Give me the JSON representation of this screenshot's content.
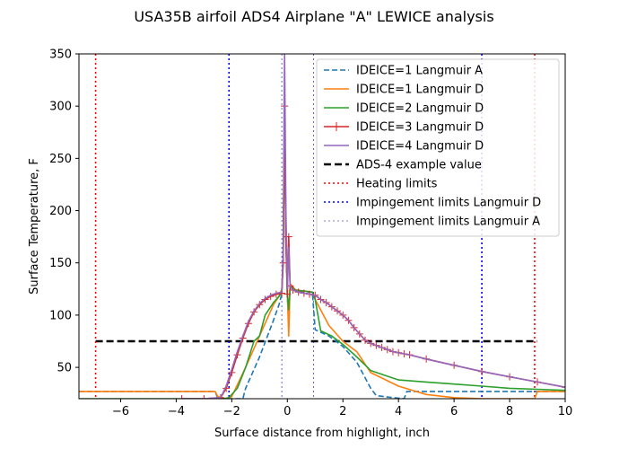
{
  "chart_data": {
    "type": "line",
    "title": "USA35B airfoil ADS4 Airplane \"A\" LEWICE analysis",
    "xlabel": "Surface distance from highlight, inch",
    "ylabel": "Surface Temperature, F",
    "xlim": [
      -7.5,
      10
    ],
    "ylim": [
      20,
      350
    ],
    "xticks": [
      -6,
      -4,
      -2,
      0,
      2,
      4,
      6,
      8,
      10
    ],
    "yticks": [
      50,
      100,
      150,
      200,
      250,
      300,
      350
    ],
    "grid": false,
    "legend_position": "top-right",
    "series": [
      {
        "name": "IDEICE=1 Langmuir A",
        "color": "#1f77b4",
        "dash": "dashed",
        "x": [
          -7.5,
          -2.6,
          -2.5,
          -1.6,
          -1.5,
          -1.0,
          -0.5,
          -0.3,
          -0.25,
          -0.2,
          -0.15,
          -0.1,
          -0.05,
          0,
          0.05,
          0.1,
          0.3,
          0.6,
          0.9,
          1.0,
          1.5,
          2.0,
          2.5,
          2.8,
          3.0,
          3.2,
          3.5,
          3.8,
          4.2,
          4.3,
          6.0,
          7.0,
          8.0,
          10.0
        ],
        "y": [
          27,
          27,
          20,
          20,
          30,
          60,
          95,
          110,
          115,
          120,
          160,
          300,
          180,
          115,
          105,
          125,
          123,
          122,
          122,
          86,
          80,
          70,
          55,
          40,
          30,
          23,
          22,
          21,
          20,
          27,
          27,
          27,
          27,
          27
        ]
      },
      {
        "name": "IDEICE=1 Langmuir D",
        "color": "#ff7f0e",
        "dash": "solid",
        "x": [
          -7.5,
          -2.6,
          -2.5,
          -2.2,
          -2.0,
          -1.5,
          -1.0,
          -0.5,
          -0.3,
          -0.2,
          -0.15,
          -0.1,
          -0.05,
          0.0,
          0.05,
          0.1,
          0.3,
          0.6,
          0.9,
          1.0,
          1.5,
          2.0,
          2.5,
          3.0,
          4.0,
          5.0,
          6.0,
          7.0,
          8.9,
          9.0,
          10.0
        ],
        "y": [
          27,
          27,
          22,
          20,
          22,
          50,
          80,
          110,
          118,
          125,
          150,
          280,
          170,
          120,
          80,
          130,
          124,
          123,
          122,
          115,
          90,
          75,
          65,
          45,
          32,
          24,
          21,
          20,
          20,
          27,
          27
        ]
      },
      {
        "name": "IDEICE=2 Langmuir D",
        "color": "#2ca02c",
        "dash": "solid",
        "x": [
          -7.5,
          -2.3,
          -2.1,
          -1.8,
          -1.5,
          -1.2,
          -1.0,
          -0.8,
          -0.5,
          -0.3,
          -0.2,
          -0.15,
          -0.1,
          -0.05,
          0,
          0.05,
          0.1,
          0.3,
          0.6,
          0.9,
          1.0,
          1.2,
          1.6,
          2.0,
          2.5,
          3.0,
          4.0,
          5.0,
          6.0,
          7.0,
          8.0,
          9.0,
          10.0
        ],
        "y": [
          20,
          20,
          21,
          30,
          50,
          75,
          80,
          100,
          112,
          118,
          122,
          150,
          280,
          170,
          120,
          105,
          128,
          124,
          123,
          122,
          115,
          85,
          80,
          72,
          60,
          47,
          38,
          36,
          34,
          32,
          30,
          29,
          28
        ]
      },
      {
        "name": "IDEICE=3 Langmuir D",
        "color": "#d62728",
        "dash": "solid",
        "marker": "plus",
        "x": [
          -3.8,
          -3.0,
          -2.4,
          -2.2,
          -2.0,
          -1.8,
          -1.6,
          -1.4,
          -1.2,
          -1.0,
          -0.8,
          -0.6,
          -0.4,
          -0.2,
          -0.15,
          -0.1,
          -0.05,
          0,
          0.05,
          0.1,
          0.2,
          0.4,
          0.6,
          0.8,
          1.0,
          1.2,
          1.4,
          1.6,
          1.8,
          2.0,
          2.2,
          2.4,
          2.6,
          2.8,
          3.0,
          3.2,
          3.4,
          3.6,
          3.8,
          4.0,
          4.2,
          4.4,
          5.0,
          6.0,
          7.0,
          8.0,
          9.0,
          10.0
        ],
        "y": [
          20,
          20,
          21,
          30,
          45,
          62,
          78,
          92,
          103,
          110,
          115,
          118,
          120,
          121,
          150,
          300,
          175,
          120,
          175,
          128,
          124,
          122,
          121,
          120,
          119,
          115,
          112,
          108,
          104,
          100,
          95,
          88,
          82,
          76,
          73,
          71,
          69,
          67,
          65,
          64,
          63,
          62,
          58,
          52,
          46,
          41,
          36,
          31
        ]
      },
      {
        "name": "IDEICE=4 Langmuir D",
        "color": "#9467bd",
        "dash": "solid",
        "x": [
          -3.8,
          -3.0,
          -2.4,
          -2.2,
          -2.0,
          -1.8,
          -1.6,
          -1.4,
          -1.2,
          -1.0,
          -0.8,
          -0.6,
          -0.4,
          -0.2,
          -0.15,
          -0.1,
          -0.05,
          0,
          0.05,
          0.1,
          0.2,
          0.4,
          0.6,
          0.8,
          1.0,
          1.2,
          1.4,
          1.6,
          1.8,
          2.0,
          2.2,
          2.4,
          2.6,
          2.8,
          3.0,
          3.2,
          3.4,
          3.6,
          3.8,
          4.0,
          4.2,
          4.4,
          5.0,
          6.0,
          7.0,
          8.0,
          9.0,
          10.0
        ],
        "y": [
          20,
          20,
          21,
          32,
          48,
          65,
          80,
          94,
          104,
          111,
          116,
          119,
          121,
          122,
          160,
          350,
          200,
          125,
          165,
          128,
          124,
          122,
          121,
          120,
          119,
          115,
          112,
          108,
          104,
          100,
          95,
          88,
          82,
          76,
          73,
          71,
          69,
          67,
          65,
          64,
          63,
          62,
          58,
          52,
          46,
          41,
          36,
          31
        ]
      }
    ],
    "reference_lines": [
      {
        "name": "ADS-4 example value",
        "orientation": "horizontal",
        "value": 75,
        "from": -6.9,
        "to": 9.0,
        "color": "#000000",
        "dash": "dashed",
        "width": 2.5
      },
      {
        "name": "Heating limits",
        "orientation": "vertical",
        "values": [
          -6.9,
          8.9
        ],
        "color": "#ff0000",
        "dash": "dotted",
        "width": 1.6
      },
      {
        "name": "Impingement limits Langmuir D",
        "orientation": "vertical",
        "values": [
          -2.1,
          7.0
        ],
        "color": "#0000ff",
        "dash": "dotted",
        "width": 1.6
      },
      {
        "name": "Impingement limits Langmuir A",
        "orientation": "vertical",
        "values": [
          -0.2,
          0.95
        ],
        "color": "#0000aa",
        "dash": "dotted",
        "width": 0.6
      }
    ],
    "legend": [
      {
        "label": "IDEICE=1 Langmuir A",
        "color": "#1f77b4",
        "dash": "dashed",
        "width": 1.6
      },
      {
        "label": "IDEICE=1 Langmuir D",
        "color": "#ff7f0e",
        "dash": "solid",
        "width": 1.6
      },
      {
        "label": "IDEICE=2 Langmuir D",
        "color": "#2ca02c",
        "dash": "solid",
        "width": 1.6
      },
      {
        "label": "IDEICE=3 Langmuir D",
        "color": "#d62728",
        "dash": "solid",
        "width": 1.6,
        "marker": "plus"
      },
      {
        "label": "IDEICE=4 Langmuir D",
        "color": "#9467bd",
        "dash": "solid",
        "width": 1.6
      },
      {
        "label": "ADS-4 example value",
        "color": "#000000",
        "dash": "dashed",
        "width": 2.5
      },
      {
        "label": "Heating limits",
        "color": "#ff0000",
        "dash": "dotted",
        "width": 1.6
      },
      {
        "label": "Impingement limits Langmuir D",
        "color": "#0000ff",
        "dash": "dotted",
        "width": 1.6
      },
      {
        "label": "Impingement limits Langmuir A",
        "color": "#0000aa",
        "dash": "dotted",
        "width": 0.6
      }
    ]
  }
}
